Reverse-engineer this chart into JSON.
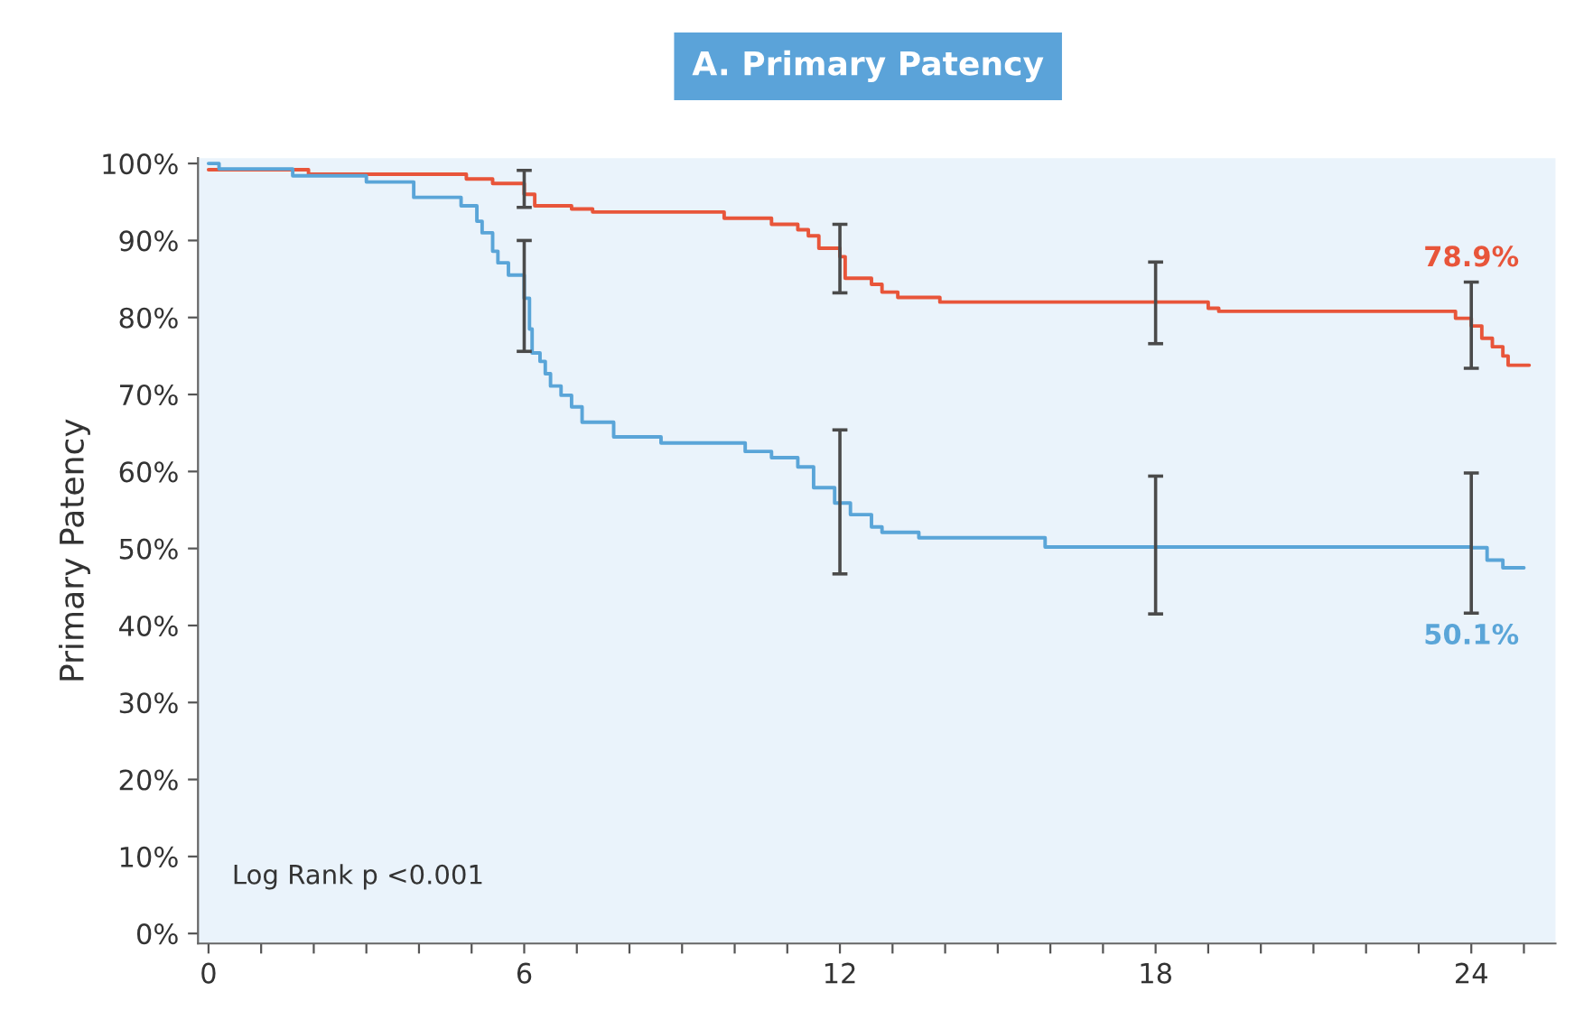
{
  "chart_data": {
    "type": "step",
    "title": "A. Primary Patency",
    "ylabel": "Primary Patency",
    "annotations": [
      "Log Rank p <0.001"
    ],
    "xlim": [
      -0.2,
      25.6
    ],
    "ylim": [
      -1.3,
      100.7
    ],
    "xticks": [
      0,
      {
        "value": 1,
        "label": null
      },
      {
        "value": 2,
        "label": null
      },
      {
        "value": 3,
        "label": null
      },
      {
        "value": 4,
        "label": null
      },
      {
        "value": 5,
        "label": null
      },
      6,
      {
        "value": 7,
        "label": null
      },
      {
        "value": 8,
        "label": null
      },
      {
        "value": 9,
        "label": null
      },
      {
        "value": 10,
        "label": null
      },
      {
        "value": 11,
        "label": null
      },
      12,
      {
        "value": 13,
        "label": null
      },
      {
        "value": 14,
        "label": null
      },
      {
        "value": 15,
        "label": null
      },
      {
        "value": 16,
        "label": null
      },
      {
        "value": 17,
        "label": null
      },
      18,
      {
        "value": 19,
        "label": null
      },
      {
        "value": 20,
        "label": null
      },
      {
        "value": 21,
        "label": null
      },
      {
        "value": 22,
        "label": null
      },
      {
        "value": 23,
        "label": null
      },
      24,
      {
        "value": 25,
        "label": null
      }
    ],
    "yticks": [
      {
        "value": 0,
        "label": "0%"
      },
      {
        "value": 10,
        "label": "10%"
      },
      {
        "value": 20,
        "label": "20%"
      },
      {
        "value": 30,
        "label": "30%"
      },
      {
        "value": 40,
        "label": "40%"
      },
      {
        "value": 50,
        "label": "50%"
      },
      {
        "value": 60,
        "label": "60%"
      },
      {
        "value": 70,
        "label": "70%"
      },
      {
        "value": 80,
        "label": "80%"
      },
      {
        "value": 90,
        "label": "90%"
      },
      {
        "value": 100,
        "label": "100%"
      }
    ],
    "grid": false,
    "legend": false,
    "marker": "none",
    "line_style": "solid",
    "series": [
      {
        "color": "#e8553a",
        "x": [
          0,
          1.9,
          4.9,
          5.4,
          6.0,
          6.2,
          6.9,
          7.3,
          9.8,
          10.7,
          11.2,
          11.4,
          11.6,
          12.0,
          12.1,
          12.6,
          12.8,
          13.1,
          13.9,
          18.0,
          19.0,
          19.2,
          23.7,
          24.0,
          24.2,
          24.4,
          24.6,
          24.7,
          25.1
        ],
        "values": [
          99.2,
          98.6,
          98.0,
          97.4,
          96.0,
          94.5,
          94.1,
          93.7,
          92.9,
          92.1,
          91.4,
          90.6,
          89.0,
          87.9,
          85.1,
          84.3,
          83.3,
          82.6,
          82.0,
          82.0,
          81.2,
          80.8,
          79.9,
          78.9,
          77.3,
          76.2,
          75.0,
          73.8,
          73.8
        ],
        "errors": [
          null,
          null,
          null,
          null,
          [
            94.3,
            99.1
          ],
          null,
          null,
          null,
          null,
          null,
          null,
          null,
          null,
          [
            83.2,
            92.1
          ],
          null,
          null,
          null,
          null,
          null,
          [
            76.6,
            87.2
          ],
          null,
          null,
          null,
          [
            73.4,
            84.6
          ],
          null,
          null,
          null,
          null,
          null
        ],
        "value_labels": [
          null,
          null,
          null,
          null,
          null,
          null,
          null,
          null,
          null,
          null,
          null,
          null,
          null,
          null,
          null,
          null,
          null,
          null,
          null,
          null,
          null,
          null,
          null,
          "78.9%",
          null,
          null,
          null,
          null,
          null
        ]
      },
      {
        "color": "#5aa5d8",
        "x": [
          0,
          0.2,
          1.6,
          3.0,
          3.9,
          4.8,
          5.1,
          5.2,
          5.4,
          5.5,
          5.7,
          6.0,
          6.1,
          6.15,
          6.3,
          6.4,
          6.5,
          6.7,
          6.9,
          7.1,
          7.7,
          8.6,
          10.2,
          10.7,
          11.2,
          11.5,
          11.9,
          12.0,
          12.2,
          12.6,
          12.8,
          13.5,
          15.9,
          18.0,
          24.0,
          24.3,
          24.6,
          25.0
        ],
        "values": [
          100,
          99.3,
          98.4,
          97.6,
          95.6,
          94.5,
          92.5,
          91.0,
          88.6,
          87.1,
          85.5,
          82.5,
          78.5,
          75.4,
          74.3,
          72.7,
          71.1,
          69.9,
          68.4,
          66.4,
          64.5,
          63.7,
          62.6,
          61.8,
          60.6,
          57.9,
          55.9,
          55.9,
          54.4,
          52.8,
          52.1,
          51.4,
          50.2,
          50.2,
          50.1,
          48.5,
          47.5,
          47.5
        ],
        "errors": [
          null,
          null,
          null,
          null,
          null,
          null,
          null,
          null,
          null,
          null,
          null,
          [
            75.6,
            90.0
          ],
          null,
          null,
          null,
          null,
          null,
          null,
          null,
          null,
          null,
          null,
          null,
          null,
          null,
          null,
          null,
          [
            46.7,
            65.4
          ],
          null,
          null,
          null,
          null,
          null,
          [
            41.5,
            59.4
          ],
          [
            41.6,
            59.8
          ],
          null,
          null,
          null
        ],
        "value_labels": [
          null,
          null,
          null,
          null,
          null,
          null,
          null,
          null,
          null,
          null,
          null,
          null,
          null,
          null,
          null,
          null,
          null,
          null,
          null,
          null,
          null,
          null,
          null,
          null,
          null,
          null,
          null,
          null,
          null,
          null,
          null,
          null,
          null,
          null,
          "50.1%",
          null,
          null,
          null
        ]
      }
    ]
  }
}
